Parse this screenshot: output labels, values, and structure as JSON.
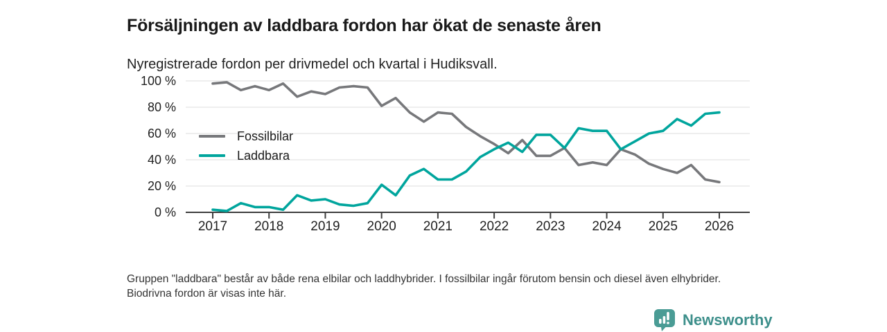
{
  "chart_data": {
    "type": "line",
    "title": "Försäljningen av laddbara fordon har ökat de senaste åren",
    "subtitle": "Nyregistrerade fordon per drivmedel och kvartal i Hudiksvall.",
    "x": [
      "2017 Q1",
      "2017 Q2",
      "2017 Q3",
      "2017 Q4",
      "2018 Q1",
      "2018 Q2",
      "2018 Q3",
      "2018 Q4",
      "2019 Q1",
      "2019 Q2",
      "2019 Q3",
      "2019 Q4",
      "2020 Q1",
      "2020 Q2",
      "2020 Q3",
      "2020 Q4",
      "2021 Q1",
      "2021 Q2",
      "2021 Q3",
      "2021 Q4",
      "2022 Q1",
      "2022 Q2",
      "2022 Q3",
      "2022 Q4",
      "2023 Q1",
      "2023 Q2",
      "2023 Q3",
      "2023 Q4",
      "2024 Q1",
      "2024 Q2",
      "2024 Q3",
      "2024 Q4",
      "2025 Q1",
      "2025 Q2",
      "2025 Q3",
      "2025 Q4",
      "2026 Q1"
    ],
    "series": [
      {
        "name": "Fossilbilar",
        "color": "#77787b",
        "values": [
          98,
          99,
          93,
          96,
          93,
          98,
          88,
          92,
          90,
          95,
          96,
          95,
          81,
          87,
          76,
          69,
          76,
          75,
          65,
          58,
          52,
          45,
          55,
          43,
          43,
          49,
          36,
          38,
          36,
          48,
          44,
          37,
          33,
          30,
          36,
          25,
          23
        ]
      },
      {
        "name": "Laddbara",
        "color": "#00a59d",
        "values": [
          2,
          1,
          7,
          4,
          4,
          2,
          13,
          9,
          10,
          6,
          5,
          7,
          21,
          13,
          28,
          33,
          25,
          25,
          31,
          42,
          48,
          53,
          46,
          59,
          59,
          49,
          64,
          62,
          62,
          48,
          54,
          60,
          62,
          71,
          66,
          75,
          76
        ]
      }
    ],
    "x_axis_ticks": [
      "2017",
      "2018",
      "2019",
      "2020",
      "2021",
      "2022",
      "2023",
      "2024",
      "2025",
      "2026"
    ],
    "y_axis_ticks": [
      "0 %",
      "20 %",
      "40 %",
      "60 %",
      "80 %",
      "100 %"
    ],
    "ylim": [
      0,
      100
    ],
    "unit": "%",
    "grid": "horizontal",
    "legend_position": "inside-left"
  },
  "footnote": "Gruppen \"laddbara\" består av både rena elbilar och laddhybrider. I fossilbilar ingår förutom bensin och diesel även elhybrider. Biodrivna fordon är visas inte här.",
  "logo": {
    "text": "Newsworthy",
    "icon": "bar-chart-speech-bubble-icon",
    "brand_color": "#3d8f8b",
    "icon_color": "#4a9c95"
  }
}
